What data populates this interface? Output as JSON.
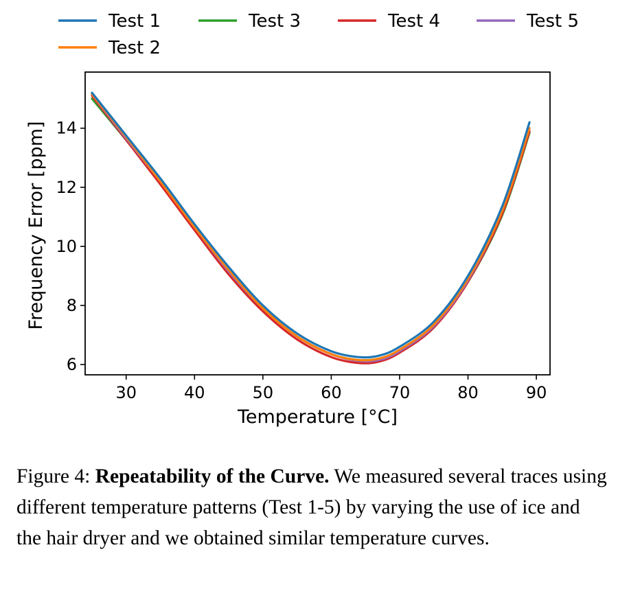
{
  "chart_data": {
    "type": "line",
    "xlabel": "Temperature [°C]",
    "ylabel": "Frequency Error [ppm]",
    "xlim": [
      24,
      92
    ],
    "ylim": [
      5.65,
      15.9
    ],
    "xticks": [
      30,
      40,
      50,
      60,
      70,
      80,
      90
    ],
    "yticks": [
      6,
      8,
      10,
      12,
      14
    ],
    "grid": false,
    "legend_position": "top",
    "series": [
      {
        "name": "Test 1",
        "color": "#1f77b4",
        "x": [
          25,
          30,
          35,
          40,
          45,
          50,
          55,
          60,
          64,
          67,
          70,
          75,
          80,
          85,
          89
        ],
        "y": [
          15.2,
          13.75,
          12.3,
          10.75,
          9.3,
          8.0,
          7.05,
          6.45,
          6.25,
          6.3,
          6.6,
          7.45,
          9.0,
          11.35,
          14.2
        ]
      },
      {
        "name": "Test 2",
        "color": "#ff7f0e",
        "x": [
          25,
          30,
          35,
          40,
          45,
          50,
          55,
          60,
          64,
          67,
          70,
          75,
          80,
          85,
          89
        ],
        "y": [
          15.15,
          13.7,
          12.2,
          10.65,
          9.2,
          7.9,
          6.95,
          6.35,
          6.15,
          6.2,
          6.5,
          7.35,
          8.9,
          11.2,
          14.0
        ]
      },
      {
        "name": "Test 3",
        "color": "#2ca02c",
        "x": [
          25,
          30,
          35,
          40,
          45,
          50,
          55,
          60,
          64,
          67,
          70,
          75,
          80,
          85,
          89
        ],
        "y": [
          15.0,
          13.6,
          12.15,
          10.6,
          9.15,
          7.9,
          6.95,
          6.35,
          6.15,
          6.2,
          6.45,
          7.3,
          8.8,
          11.05,
          13.85
        ]
      },
      {
        "name": "Test 4",
        "color": "#d62728",
        "x": [
          25,
          30,
          35,
          40,
          45,
          50,
          55,
          60,
          64,
          67,
          70,
          75,
          80,
          85,
          89
        ],
        "y": [
          15.1,
          13.6,
          12.1,
          10.55,
          9.05,
          7.8,
          6.85,
          6.25,
          6.05,
          6.1,
          6.4,
          7.25,
          8.8,
          11.1,
          13.9
        ]
      },
      {
        "name": "Test 5",
        "color": "#9467bd",
        "x": [
          25,
          30,
          35,
          40,
          45,
          50,
          55,
          60,
          64,
          67,
          70,
          75,
          80,
          85,
          89
        ],
        "y": [
          15.15,
          13.65,
          12.2,
          10.65,
          9.15,
          7.9,
          6.95,
          6.35,
          6.12,
          6.15,
          6.45,
          7.3,
          8.85,
          11.2,
          14.0
        ]
      }
    ]
  },
  "caption": {
    "prefix": "Figure 4: ",
    "bold": "Repeatability of the Curve.",
    "text": " We measured several traces using different temperature patterns (Test 1-5) by varying the use of ice and the hair dryer and we obtained similar temperature curves."
  }
}
